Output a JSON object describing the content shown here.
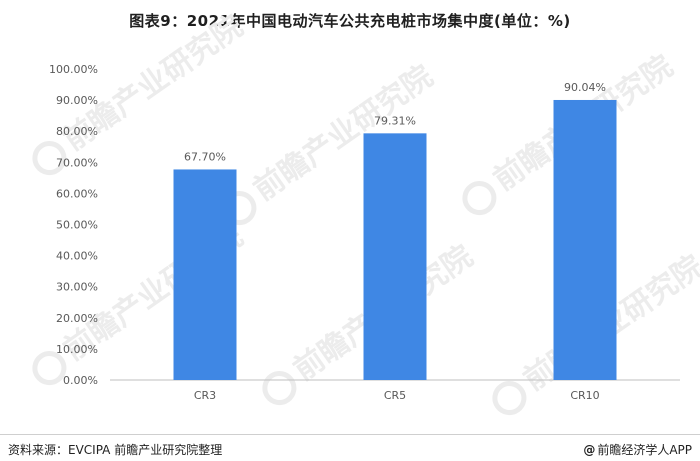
{
  "title": "图表9：2021年中国电动汽车公共充电桩市场集中度(单位：%)",
  "watermark": "前瞻产业研究院",
  "footer": {
    "source": "资料来源：EVCIPA 前瞻产业研究院整理",
    "brand_at": "@",
    "brand": "前瞻经济学人APP"
  },
  "colors": {
    "bar": "#3f87e4",
    "axis": "#bfbfbf",
    "label": "#595959"
  },
  "chart_data": {
    "type": "bar",
    "title": "图表9：2021年中国电动汽车公共充电桩市场集中度(单位：%)",
    "categories": [
      "CR3",
      "CR5",
      "CR10"
    ],
    "values": [
      67.7,
      79.31,
      90.04
    ],
    "value_labels": [
      "67.70%",
      "79.31%",
      "90.04%"
    ],
    "ylim": [
      0,
      100
    ],
    "yticks": [
      0,
      10,
      20,
      30,
      40,
      50,
      60,
      70,
      80,
      90,
      100
    ],
    "ytick_labels": [
      "0.00%",
      "10.00%",
      "20.00%",
      "30.00%",
      "40.00%",
      "50.00%",
      "60.00%",
      "70.00%",
      "80.00%",
      "90.00%",
      "100.00%"
    ],
    "grid": false,
    "legend": "none"
  }
}
